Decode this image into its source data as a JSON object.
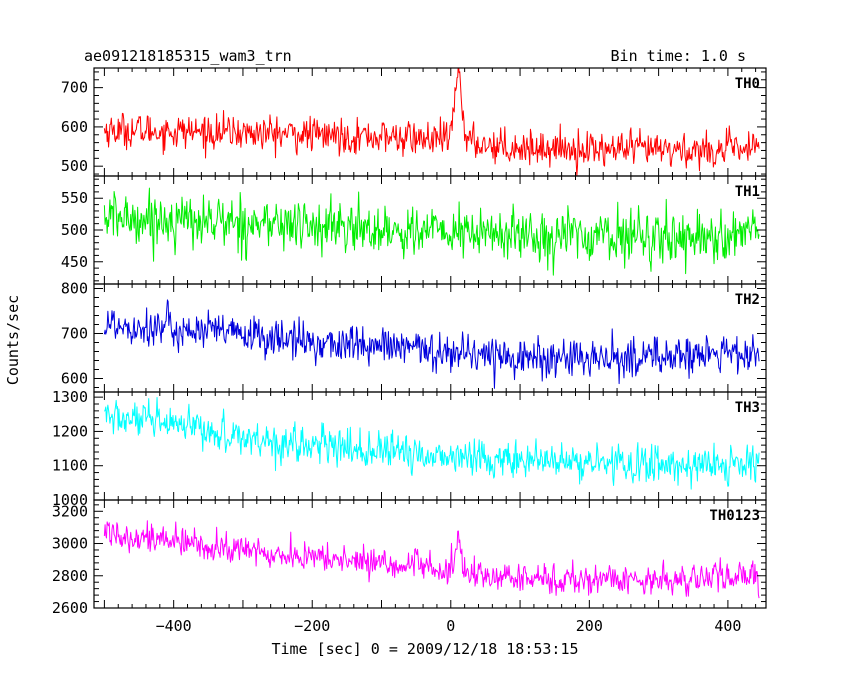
{
  "header": {
    "title": "ae091218185315_wam3_trn",
    "bin_time": "Bin time: 1.0 s"
  },
  "ylabel": "Counts/sec",
  "xlabel": "Time [sec] 0 = 2009/12/18 18:53:15",
  "chart_data": {
    "type": "line",
    "x_range": [
      -515,
      455
    ],
    "x_ticks": [
      -400,
      -200,
      0,
      200,
      400
    ],
    "x_tick_labels": [
      "−400",
      "−200",
      "0",
      "200",
      "400"
    ],
    "data_x_range": [
      -500,
      445
    ],
    "bin_sec": 1.0,
    "panels": [
      {
        "label": "TH0",
        "color": "#ff0000",
        "ylim": [
          475,
          750
        ],
        "yticks": [
          500,
          600,
          700
        ],
        "trend": [
          [
            -500,
            592
          ],
          [
            -300,
            585
          ],
          [
            -100,
            575
          ],
          [
            0,
            565
          ],
          [
            100,
            548
          ],
          [
            300,
            540
          ],
          [
            445,
            542
          ]
        ],
        "noise": 26,
        "burst": {
          "center": 11,
          "width": 5,
          "peak": 180
        }
      },
      {
        "label": "TH1",
        "color": "#00ee00",
        "ylim": [
          415,
          585
        ],
        "yticks": [
          450,
          500,
          550
        ],
        "trend": [
          [
            -500,
            520
          ],
          [
            -300,
            512
          ],
          [
            -100,
            500
          ],
          [
            100,
            492
          ],
          [
            300,
            490
          ],
          [
            445,
            490
          ]
        ],
        "noise": 24,
        "burst": null
      },
      {
        "label": "TH2",
        "color": "#0000dd",
        "ylim": [
          570,
          810
        ],
        "yticks": [
          600,
          700,
          800
        ],
        "trend": [
          [
            -500,
            722
          ],
          [
            -350,
            705
          ],
          [
            -200,
            680
          ],
          [
            -50,
            665
          ],
          [
            0,
            660
          ],
          [
            100,
            648
          ],
          [
            200,
            640
          ],
          [
            300,
            650
          ],
          [
            445,
            655
          ]
        ],
        "noise": 26,
        "burst": null
      },
      {
        "label": "TH3",
        "color": "#00ffff",
        "ylim": [
          1000,
          1315
        ],
        "yticks": [
          1000,
          1100,
          1200,
          1300
        ],
        "trend": [
          [
            -500,
            1245
          ],
          [
            -400,
            1215
          ],
          [
            -250,
            1170
          ],
          [
            -100,
            1140
          ],
          [
            0,
            1128
          ],
          [
            150,
            1110
          ],
          [
            300,
            1103
          ],
          [
            445,
            1100
          ]
        ],
        "noise": 32,
        "burst": null
      },
      {
        "label": "TH0123",
        "color": "#ff00ff",
        "ylim": [
          2600,
          3270
        ],
        "yticks": [
          2600,
          2800,
          3000,
          3200
        ],
        "trend": [
          [
            -500,
            3080
          ],
          [
            -400,
            3010
          ],
          [
            -250,
            2930
          ],
          [
            -100,
            2880
          ],
          [
            0,
            2830
          ],
          [
            20,
            2800
          ],
          [
            150,
            2775
          ],
          [
            300,
            2780
          ],
          [
            445,
            2790
          ]
        ],
        "noise": 55,
        "burst": {
          "center": 11,
          "width": 5,
          "peak": 170
        }
      }
    ]
  }
}
